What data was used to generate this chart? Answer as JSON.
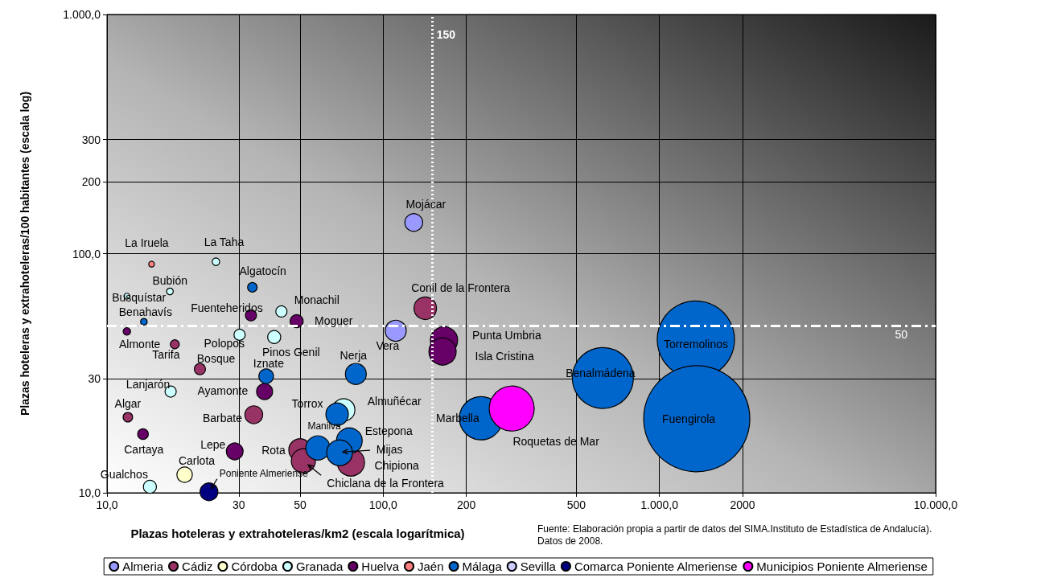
{
  "chart_data": {
    "type": "bubble",
    "xlabel": "Plazas hoteleras y extrahoteleras/km2 (escala logarítmica)",
    "ylabel": "Plazas hoteleras y extrahoteleras/100 habitantes (escala log)",
    "log": "xy",
    "grid": true,
    "legend": "bottom",
    "marker": "circle",
    "xlim": [
      10,
      10000
    ],
    "xticks": [
      {
        "value": 10,
        "label": "10,0"
      },
      30,
      50,
      {
        "value": 100,
        "label": "100,0"
      },
      200,
      500,
      {
        "value": 1000,
        "label": "1.000,0"
      },
      2000,
      {
        "value": 10000,
        "label": "10.000,0"
      }
    ],
    "ylim": [
      10,
      1000
    ],
    "yticks": [
      {
        "value": 10,
        "label": "10,0"
      },
      30,
      {
        "value": 100,
        "label": "100,0"
      },
      200,
      300,
      {
        "value": 1000,
        "label": "1.000,0"
      }
    ],
    "ref_lines": [
      {
        "axis": "x",
        "value": 150,
        "label": "150",
        "color": "#ffffff",
        "line_style": "dotted"
      },
      {
        "axis": "y",
        "value": 50,
        "label": "50",
        "color": "#ffffff",
        "line_style": "dashed"
      }
    ],
    "series": [
      {
        "name": "Almeria",
        "color": "#9999ff",
        "x": [
          129,
          111
        ],
        "values": [
          135,
          47.6
        ],
        "sizes": [
          0.028,
          0.039
        ]
      },
      {
        "name": "Cádiz",
        "color": "#993366",
        "x": [
          17.6,
          21.7,
          11.9,
          34.0,
          50.0,
          51.4,
          76.4,
          142
        ],
        "values": [
          41.8,
          32.9,
          20.7,
          21.2,
          15.1,
          13.6,
          13.4,
          59.1
        ],
        "sizes": [
          0.007,
          0.011,
          0.008,
          0.028,
          0.045,
          0.052,
          0.066,
          0.045
        ]
      },
      {
        "name": "Córdoba",
        "color": "#ffffcc",
        "x": [
          19.1
        ],
        "values": [
          11.9
        ],
        "sizes": [
          0.021
        ]
      },
      {
        "name": "Granada",
        "color": "#ccffff",
        "x": [
          24.8,
          16.9,
          11.8,
          42.8,
          30.2,
          40.3,
          17.0,
          71.9,
          14.3
        ],
        "values": [
          92.5,
          69.5,
          66.4,
          57.3,
          45.8,
          44.8,
          26.5,
          22.2,
          10.6
        ],
        "sizes": [
          0.005,
          0.004,
          0.003,
          0.011,
          0.011,
          0.015,
          0.011,
          0.045,
          0.015
        ]
      },
      {
        "name": "Huelva",
        "color": "#660066",
        "x": [
          33.2,
          48.6,
          11.8,
          37.2,
          13.5,
          29.0,
          166,
          164
        ],
        "values": [
          55.2,
          52.2,
          47.3,
          26.5,
          17.6,
          14.9,
          43.4,
          39.0
        ],
        "sizes": [
          0.011,
          0.015,
          0.005,
          0.023,
          0.01,
          0.025,
          0.066,
          0.066
        ]
      },
      {
        "name": "Jaén",
        "color": "#ff8080",
        "x": [
          14.5
        ],
        "values": [
          90.4
        ],
        "sizes": [
          0.003
        ]
      },
      {
        "name": "Málaga",
        "color": "#0066cc",
        "x": [
          13.6,
          33.6,
          37.7,
          79.6,
          68.1,
          58.0,
          75.4,
          69.5,
          226,
          624,
          1355,
          1365
        ],
        "values": [
          51.9,
          72.3,
          30.7,
          31.4,
          21.3,
          15.4,
          16.5,
          14.7,
          20.5,
          30.2,
          43.7,
          20.4
        ],
        "sizes": [
          0.004,
          0.008,
          0.019,
          0.039,
          0.045,
          0.052,
          0.059,
          0.059,
          0.167,
          0.33,
          0.53,
          1
        ]
      },
      {
        "name": "Sevilla",
        "color": "#ccccff"
      },
      {
        "name": "Comarca Poniente Almeriense",
        "color": "#000080",
        "x": [
          23.4
        ],
        "values": [
          10.1
        ],
        "sizes": [
          0.028
        ]
      },
      {
        "name": "Municipios Poniente Almeriense",
        "color": "#ff00ff",
        "x": [
          292
        ],
        "values": [
          22.5
        ],
        "sizes": [
          0.18
        ]
      }
    ],
    "annotations": [
      {
        "text": "Mojácar",
        "x": 129,
        "y": 135
      },
      {
        "text": "Vera",
        "x": 111,
        "y": 47.6
      },
      {
        "text": "Tarifa",
        "x": 17.6,
        "y": 41.8
      },
      {
        "text": "Bosque",
        "x": 21.7,
        "y": 32.9
      },
      {
        "text": "Algar",
        "x": 11.9,
        "y": 20.7
      },
      {
        "text": "Barbate",
        "x": 34.0,
        "y": 21.2
      },
      {
        "text": "Rota",
        "x": 50.0,
        "y": 15.1
      },
      {
        "text": "Chiclana de la Frontera",
        "x": 51.4,
        "y": 13.6
      },
      {
        "text": "Chipiona",
        "x": 76.4,
        "y": 13.4
      },
      {
        "text": "Conil de la Frontera",
        "x": 142,
        "y": 59.1
      },
      {
        "text": "Carlota",
        "x": 19.1,
        "y": 11.9
      },
      {
        "text": "La Taha",
        "x": 24.8,
        "y": 92.5
      },
      {
        "text": "Bubión",
        "x": 16.9,
        "y": 69.5
      },
      {
        "text": "Busquístar",
        "x": 11.8,
        "y": 66.4
      },
      {
        "text": "Monachil",
        "x": 42.8,
        "y": 57.3
      },
      {
        "text": "Polopos",
        "x": 30.2,
        "y": 45.8
      },
      {
        "text": "Pinos Genil",
        "x": 40.3,
        "y": 44.8
      },
      {
        "text": "Lanjarón",
        "x": 17.0,
        "y": 26.5
      },
      {
        "text": "Almuñécar",
        "x": 71.9,
        "y": 22.2
      },
      {
        "text": "Gualchos",
        "x": 14.3,
        "y": 10.6
      },
      {
        "text": "Fuenteheridos",
        "x": 33.2,
        "y": 55.2
      },
      {
        "text": "Moguer",
        "x": 48.6,
        "y": 52.2
      },
      {
        "text": "Almonte",
        "x": 11.8,
        "y": 47.3
      },
      {
        "text": "Ayamonte",
        "x": 37.2,
        "y": 26.5
      },
      {
        "text": "Cartaya",
        "x": 13.5,
        "y": 17.6
      },
      {
        "text": "Lepe",
        "x": 29.0,
        "y": 14.9
      },
      {
        "text": "Punta Umbria",
        "x": 166,
        "y": 43.4
      },
      {
        "text": "Isla Cristina",
        "x": 164,
        "y": 39.0
      },
      {
        "text": "La Iruela",
        "x": 14.5,
        "y": 90.4
      },
      {
        "text": "Benahavís",
        "x": 13.6,
        "y": 51.9
      },
      {
        "text": "Algatocín",
        "x": 33.6,
        "y": 72.3
      },
      {
        "text": "Iznate",
        "x": 37.7,
        "y": 30.7
      },
      {
        "text": "Nerja",
        "x": 79.6,
        "y": 31.4
      },
      {
        "text": "Torrox",
        "x": 68.1,
        "y": 21.3
      },
      {
        "text": "Manilva",
        "x": 58.0,
        "y": 15.4
      },
      {
        "text": "Estepona",
        "x": 75.4,
        "y": 16.5
      },
      {
        "text": "Mijas",
        "x": 69.5,
        "y": 14.7
      },
      {
        "text": "Marbella",
        "x": 226,
        "y": 20.5
      },
      {
        "text": "Benalmádena",
        "x": 624,
        "y": 30.2
      },
      {
        "text": "Torremolinos",
        "x": 1355,
        "y": 43.7
      },
      {
        "text": "Fuengirola",
        "x": 1365,
        "y": 20.4
      },
      {
        "text": "Poniente Almeriense",
        "x": 23.4,
        "y": 10.1
      },
      {
        "text": "Roquetas de Mar",
        "x": 292,
        "y": 22.5
      },
      "Fuente: Elaboración propia a partir de datos del SIMA.Instituto de Estadística de Andalucía). Datos de 2008."
    ]
  }
}
